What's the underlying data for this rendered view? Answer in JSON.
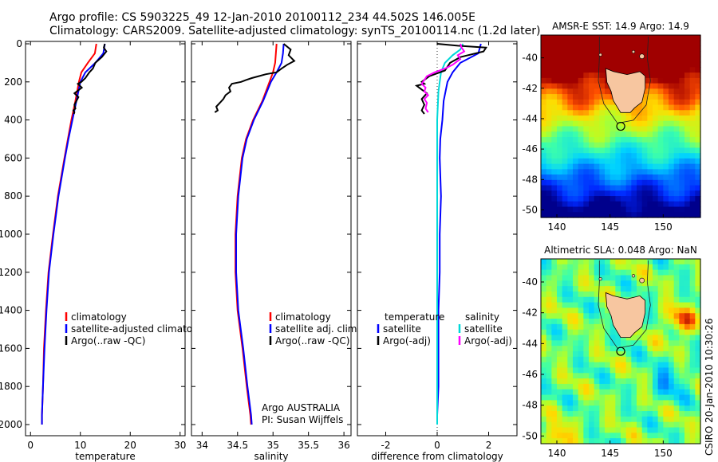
{
  "header": {
    "line1": "Argo profile: CS 5903225_49 12-Jan-2010 20100112_234 44.502S 146.005E",
    "line2": "Climatology: CARS2009. Satellite-adjusted climatology: synTS_20100114.nc (1.2d later)"
  },
  "credit": {
    "agency": "Argo AUSTRALIA",
    "pi": "PI: Susan Wijffels",
    "stamp": "CSIRO 20-Jan-2010 10:30:26"
  },
  "chart_data": [
    {
      "id": "temperature",
      "type": "line",
      "xlabel": "temperature",
      "xlim": [
        -1,
        31
      ],
      "ylim": [
        2000,
        0
      ],
      "xticks": [
        "0",
        "10",
        "20",
        "30"
      ],
      "yticks": [
        "0",
        "200",
        "400",
        "600",
        "800",
        "1000",
        "1200",
        "1400",
        "1600",
        "1800",
        "2000"
      ],
      "legend": [
        "climatology",
        "satellite-adjusted climatology",
        "Argo(..raw -QC)"
      ],
      "series": [
        {
          "name": "climatology",
          "color": "#ff0000",
          "x": [
            13.2,
            12.9,
            11.5,
            10.2,
            9.7,
            9.0,
            8.2,
            7.5,
            6.8,
            5.5,
            4.5,
            3.6,
            3.1,
            2.7,
            2.5,
            2.3,
            2.3
          ],
          "y": [
            0,
            50,
            100,
            150,
            200,
            300,
            400,
            500,
            600,
            800,
            1000,
            1200,
            1400,
            1600,
            1800,
            1950,
            2000
          ]
        },
        {
          "name": "satellite-adjusted climatology",
          "color": "#0000ff",
          "x": [
            14.9,
            14.6,
            13.0,
            11.0,
            10.0,
            9.2,
            8.4,
            7.6,
            6.9,
            5.6,
            4.6,
            3.7,
            3.2,
            2.8,
            2.5,
            2.3,
            2.3
          ],
          "y": [
            0,
            50,
            100,
            150,
            200,
            300,
            400,
            500,
            600,
            800,
            1000,
            1200,
            1400,
            1600,
            1800,
            1950,
            2000
          ]
        },
        {
          "name": "Argo(..raw -QC)",
          "color": "#000000",
          "x": [
            14.9,
            14.7,
            15.2,
            14.3,
            13.0,
            12.5,
            11.8,
            11.0,
            10.2,
            9.5,
            10.3,
            8.8,
            9.6,
            9.2,
            8.8,
            9.0,
            8.6,
            8.8,
            8.7
          ],
          "y": [
            0,
            20,
            40,
            70,
            100,
            130,
            150,
            180,
            200,
            210,
            230,
            260,
            280,
            300,
            320,
            340,
            350,
            360,
            368
          ]
        }
      ]
    },
    {
      "id": "salinity",
      "type": "line",
      "xlabel": "salinity",
      "xlim": [
        33.85,
        36.1
      ],
      "ylim": [
        2000,
        0
      ],
      "xticks": [
        "34",
        "34.5",
        "35",
        "35.5",
        "36"
      ],
      "legend": [
        "climatology",
        "satellite adj. clim.",
        "Argo(..raw -QC)"
      ],
      "series": [
        {
          "name": "climatology",
          "color": "#ff0000",
          "x": [
            35.05,
            35.04,
            35.03,
            35.0,
            34.95,
            34.85,
            34.72,
            34.62,
            34.56,
            34.5,
            34.47,
            34.47,
            34.5,
            34.57,
            34.63,
            34.68,
            34.69
          ],
          "y": [
            0,
            50,
            100,
            150,
            200,
            300,
            400,
            500,
            600,
            800,
            1000,
            1200,
            1400,
            1600,
            1800,
            1950,
            2000
          ]
        },
        {
          "name": "satellite adj. clim.",
          "color": "#0000ff",
          "x": [
            35.15,
            35.14,
            35.12,
            35.05,
            34.97,
            34.86,
            34.73,
            34.63,
            34.57,
            34.51,
            34.48,
            34.48,
            34.51,
            34.58,
            34.64,
            34.69,
            34.7
          ],
          "y": [
            0,
            50,
            100,
            150,
            200,
            300,
            400,
            500,
            600,
            800,
            1000,
            1200,
            1400,
            1600,
            1800,
            1950,
            2000
          ]
        },
        {
          "name": "Argo(..raw -QC)",
          "color": "#000000",
          "x": [
            35.15,
            35.25,
            35.22,
            35.3,
            35.2,
            35.12,
            35.05,
            34.9,
            34.8,
            34.7,
            34.62,
            34.55,
            34.42,
            34.38,
            34.4,
            34.33,
            34.3,
            34.25,
            34.2,
            34.22,
            34.18
          ],
          "y": [
            0,
            30,
            60,
            90,
            110,
            130,
            150,
            160,
            170,
            180,
            190,
            200,
            210,
            230,
            250,
            270,
            290,
            310,
            330,
            350,
            360
          ]
        }
      ]
    },
    {
      "id": "difference",
      "type": "line",
      "xlabel": "difference from climatology",
      "xlim": [
        -3.1,
        3.1
      ],
      "ylim": [
        2000,
        0
      ],
      "xticks": [
        "-2",
        "0",
        "2"
      ],
      "legend_temperature_title": "temperature",
      "legend_salinity_title": "salinity",
      "legend_temperature": [
        "satellite",
        "Argo(-adj)"
      ],
      "legend_salinity": [
        "satellite",
        "Argo(-adj)"
      ],
      "series": [
        {
          "name": "temperature satellite",
          "color": "#0000ff",
          "x": [
            1.7,
            1.6,
            0.9,
            0.6,
            0.4,
            0.25,
            0.2,
            0.12,
            0.1,
            0.15,
            0.1,
            0.1,
            0.05,
            0.05,
            0.05,
            0.0,
            0.0
          ],
          "y": [
            0,
            50,
            100,
            150,
            200,
            300,
            400,
            500,
            600,
            800,
            1000,
            1200,
            1400,
            1600,
            1800,
            1950,
            2000
          ]
        },
        {
          "name": "salinity satellite",
          "color": "#00d8d8",
          "x": [
            1.0,
            0.9,
            0.6,
            0.3,
            0.15,
            0.05,
            0.0,
            0.0,
            0.0,
            0.0,
            0.0,
            0.0,
            0.0,
            0.0,
            0.0,
            0.0,
            0.0
          ],
          "y": [
            0,
            30,
            60,
            100,
            150,
            250,
            400,
            500,
            600,
            800,
            1000,
            1200,
            1400,
            1600,
            1800,
            1950,
            2000
          ]
        },
        {
          "name": "temperature Argo(-adj)",
          "color": "#000000",
          "x": [
            0.0,
            0.8,
            1.9,
            1.8,
            0.9,
            0.5,
            0.3,
            -0.3,
            -0.6,
            -0.5,
            -0.8,
            -0.6,
            -0.4,
            -0.6,
            -0.5,
            -0.6,
            -0.5
          ],
          "y": [
            0,
            10,
            20,
            40,
            70,
            100,
            140,
            170,
            200,
            210,
            220,
            240,
            260,
            290,
            320,
            350,
            368
          ]
        },
        {
          "name": "salinity Argo(-adj)",
          "color": "#ff00ff",
          "x": [
            0.9,
            0.95,
            1.05,
            0.8,
            0.9,
            0.6,
            0.3,
            -0.1,
            -0.4,
            -0.5,
            -0.6,
            -0.45,
            -0.5,
            -0.35,
            -0.5,
            -0.4,
            -0.45,
            -0.35
          ],
          "y": [
            0,
            20,
            40,
            60,
            80,
            110,
            130,
            150,
            170,
            190,
            210,
            230,
            250,
            270,
            290,
            310,
            340,
            360
          ]
        }
      ]
    },
    {
      "id": "sst-map",
      "type": "heatmap",
      "title": "AMSR-E SST: 14.9  Argo: 14.9",
      "xlim": [
        138.5,
        153.5
      ],
      "ylim": [
        -50.5,
        -38.5
      ],
      "xticks": [
        "140",
        "145",
        "150"
      ],
      "yticks": [
        "-40",
        "-42",
        "-44",
        "-46",
        "-48",
        "-50"
      ],
      "marker": {
        "lon": 146.005,
        "lat": -44.502
      }
    },
    {
      "id": "sla-map",
      "type": "heatmap",
      "title": "Altimetric SLA: 0.048  Argo: NaN",
      "xlim": [
        138.5,
        153.5
      ],
      "ylim": [
        -50.5,
        -38.5
      ],
      "xticks": [
        "140",
        "145",
        "150"
      ],
      "yticks": [
        "-40",
        "-42",
        "-44",
        "-46",
        "-48",
        "-50"
      ],
      "marker": {
        "lon": 146.005,
        "lat": -44.502
      }
    }
  ]
}
